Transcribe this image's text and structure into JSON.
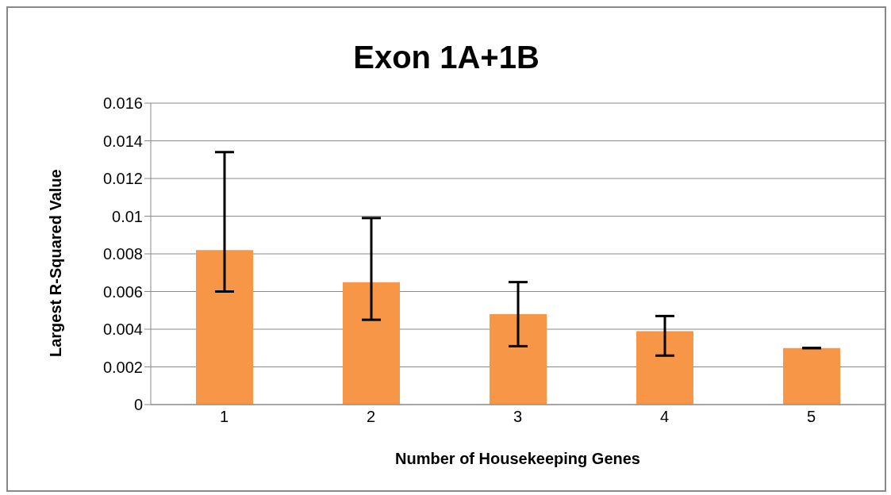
{
  "chart_data": {
    "type": "bar",
    "title": "Exon 1A+1B",
    "xlabel": "Number of Housekeeping Genes",
    "ylabel": "Largest R-Squared Value",
    "categories": [
      "1",
      "2",
      "3",
      "4",
      "5"
    ],
    "values": [
      0.0082,
      0.0065,
      0.0048,
      0.0039,
      0.003
    ],
    "errors": [
      [
        0.006,
        0.0134
      ],
      [
        0.0045,
        0.0099
      ],
      [
        0.0031,
        0.0065
      ],
      [
        0.0026,
        0.0047
      ],
      [
        0.003,
        0.003
      ]
    ],
    "color": "#f79646",
    "ylim": [
      0,
      0.016
    ],
    "yticks": [
      0,
      0.002,
      0.004,
      0.006,
      0.008,
      {
        "value": 0.01,
        "label": "0.01"
      },
      0.012,
      0.014,
      0.016
    ],
    "grid": "y",
    "legend": false
  }
}
